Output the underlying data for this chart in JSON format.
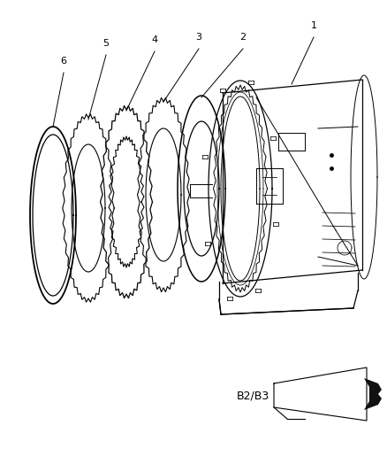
{
  "bg_color": "#ffffff",
  "line_color": "#000000",
  "fig_width": 4.38,
  "fig_height": 5.33,
  "b2b3_label": "B2/B3"
}
